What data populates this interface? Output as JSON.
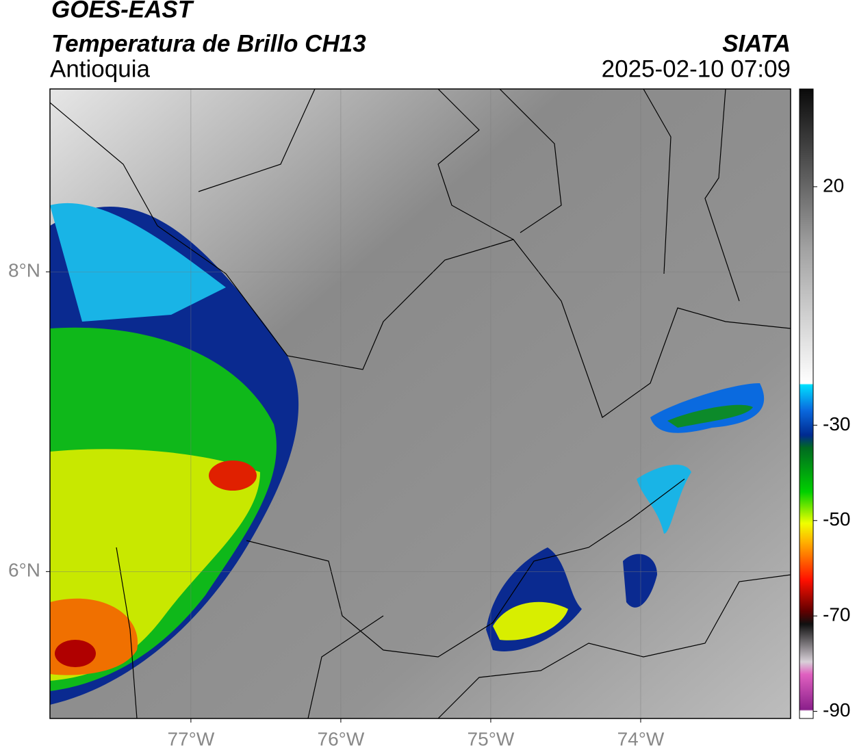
{
  "header": {
    "satellite": "GOES-EAST",
    "product": "Temperatura de Brillo CH13",
    "region": "Antioquia",
    "source": "SIATA",
    "timestamp": "2025-02-10 07:09"
  },
  "map": {
    "xlim": [
      -77.94,
      -73.0
    ],
    "ylim": [
      5.02,
      9.22
    ],
    "xticks": [
      {
        "value": -77,
        "label": "77°W"
      },
      {
        "value": -76,
        "label": "76°W"
      },
      {
        "value": -75,
        "label": "75°W"
      },
      {
        "value": -74,
        "label": "74°W"
      }
    ],
    "yticks": [
      {
        "value": 8,
        "label": "8°N"
      },
      {
        "value": 6,
        "label": "6°N"
      }
    ],
    "grid": true
  },
  "colorbar": {
    "lim": [
      -91.5,
      40.5
    ],
    "ticks": [
      20,
      -30,
      -50,
      -70,
      -90
    ]
  }
}
